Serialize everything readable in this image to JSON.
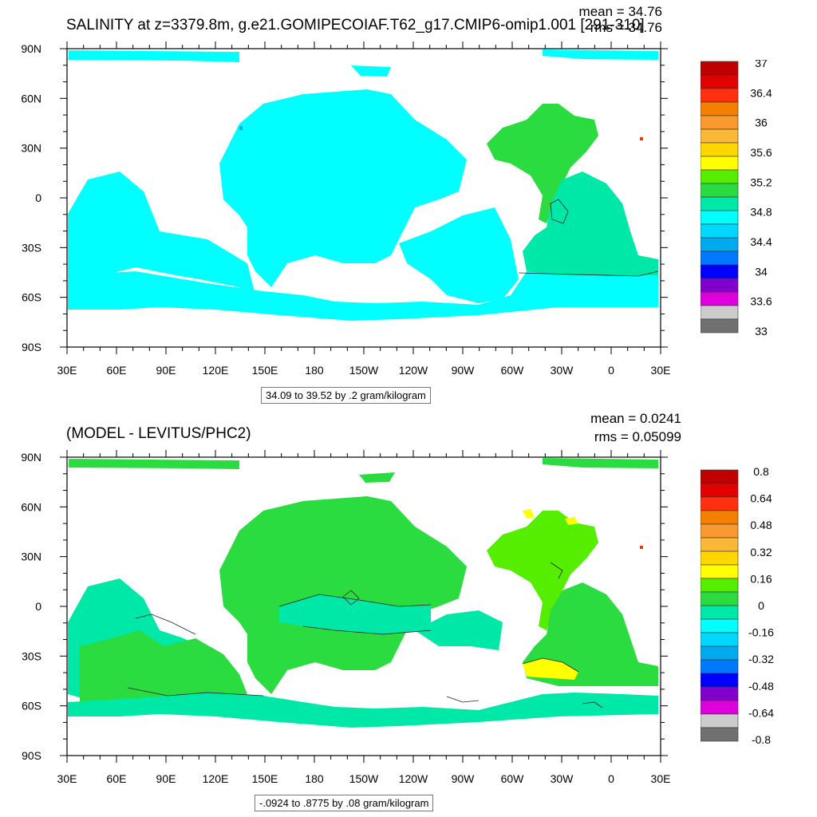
{
  "panels": [
    {
      "id": "top",
      "title": "SALINITY at z=3379.8m, g.e21.GOMIPECOIAF.T62_g17.CMIP6-omip1.001 [291-310]",
      "mean_text": "mean = 34.76",
      "rms_text": "rms = 34.76",
      "contour_info": "34.09 to 39.52 by .2 gram/kilogram",
      "colorbar": {
        "labels": [
          "37",
          "36.4",
          "36",
          "35.6",
          "35.2",
          "34.8",
          "34.4",
          "34",
          "33.6",
          "33"
        ],
        "colors": [
          "#c00000",
          "#e20000",
          "#ff3010",
          "#f58000",
          "#f89a30",
          "#fbb838",
          "#ffd700",
          "#ffff00",
          "#55ee00",
          "#2bdc40",
          "#00e8a8",
          "#00ffff",
          "#00d8ff",
          "#00aaee",
          "#0077ff",
          "#0000ff",
          "#8000cc",
          "#dd00dd",
          "#cccccc",
          "#707070"
        ]
      },
      "chart_data": {
        "type": "heatmap",
        "title": "SALINITY at z=3379.8m, g.e21.GOMIPECOIAF.T62_g17.CMIP6-omip1.001 [291-310]",
        "x_ticks": [
          "30E",
          "60E",
          "90E",
          "120E",
          "150E",
          "180",
          "150W",
          "120W",
          "90W",
          "60W",
          "30W",
          "0",
          "30E"
        ],
        "y_ticks": [
          "90N",
          "60N",
          "30N",
          "0",
          "30S",
          "60S",
          "90S"
        ],
        "xlim": [
          30,
          390
        ],
        "ylim": [
          -90,
          90
        ],
        "mean": 34.76,
        "rms": 34.76,
        "contour_min": 34.09,
        "contour_max": 39.52,
        "contour_interval": 0.2,
        "units": "gram/kilogram",
        "dominant_values": {
          "Pacific": 34.7,
          "Indian": 34.7,
          "Atlantic North": 35.0,
          "Atlantic South": 34.9,
          "Southern Ocean": 34.7
        }
      }
    },
    {
      "id": "bottom",
      "title": "(MODEL - LEVITUS/PHC2)",
      "mean_text": "mean = 0.0241",
      "rms_text": "rms = 0.05099",
      "contour_info": "-.0924 to .8775 by .08 gram/kilogram",
      "colorbar": {
        "labels": [
          "0.8",
          "0.64",
          "0.48",
          "0.32",
          "0.16",
          "0",
          "-0.16",
          "-0.32",
          "-0.48",
          "-0.64",
          "-0.8"
        ],
        "colors": [
          "#c00000",
          "#e20000",
          "#ff3010",
          "#f58000",
          "#f89a30",
          "#fbb838",
          "#ffd700",
          "#ffff00",
          "#55ee00",
          "#2bdc40",
          "#00e8a8",
          "#00ffff",
          "#00d8ff",
          "#00aaee",
          "#0077ff",
          "#0000ff",
          "#8000cc",
          "#dd00dd",
          "#cccccc",
          "#707070"
        ]
      },
      "chart_data": {
        "type": "heatmap",
        "title": "(MODEL - LEVITUS/PHC2)",
        "x_ticks": [
          "30E",
          "60E",
          "90E",
          "120E",
          "150E",
          "180",
          "150W",
          "120W",
          "90W",
          "60W",
          "30W",
          "0",
          "30E"
        ],
        "y_ticks": [
          "90N",
          "60N",
          "30N",
          "0",
          "30S",
          "60S",
          "90S"
        ],
        "xlim": [
          30,
          390
        ],
        "ylim": [
          -90,
          90
        ],
        "mean": 0.0241,
        "rms": 0.05099,
        "contour_min": -0.0924,
        "contour_max": 0.8775,
        "contour_interval": 0.08,
        "units": "gram/kilogram",
        "dominant_values": {
          "Pacific": 0.04,
          "Indian": 0.0,
          "Atlantic North": 0.1,
          "Atlantic South": 0.1,
          "Southern Ocean": -0.02
        }
      }
    }
  ]
}
